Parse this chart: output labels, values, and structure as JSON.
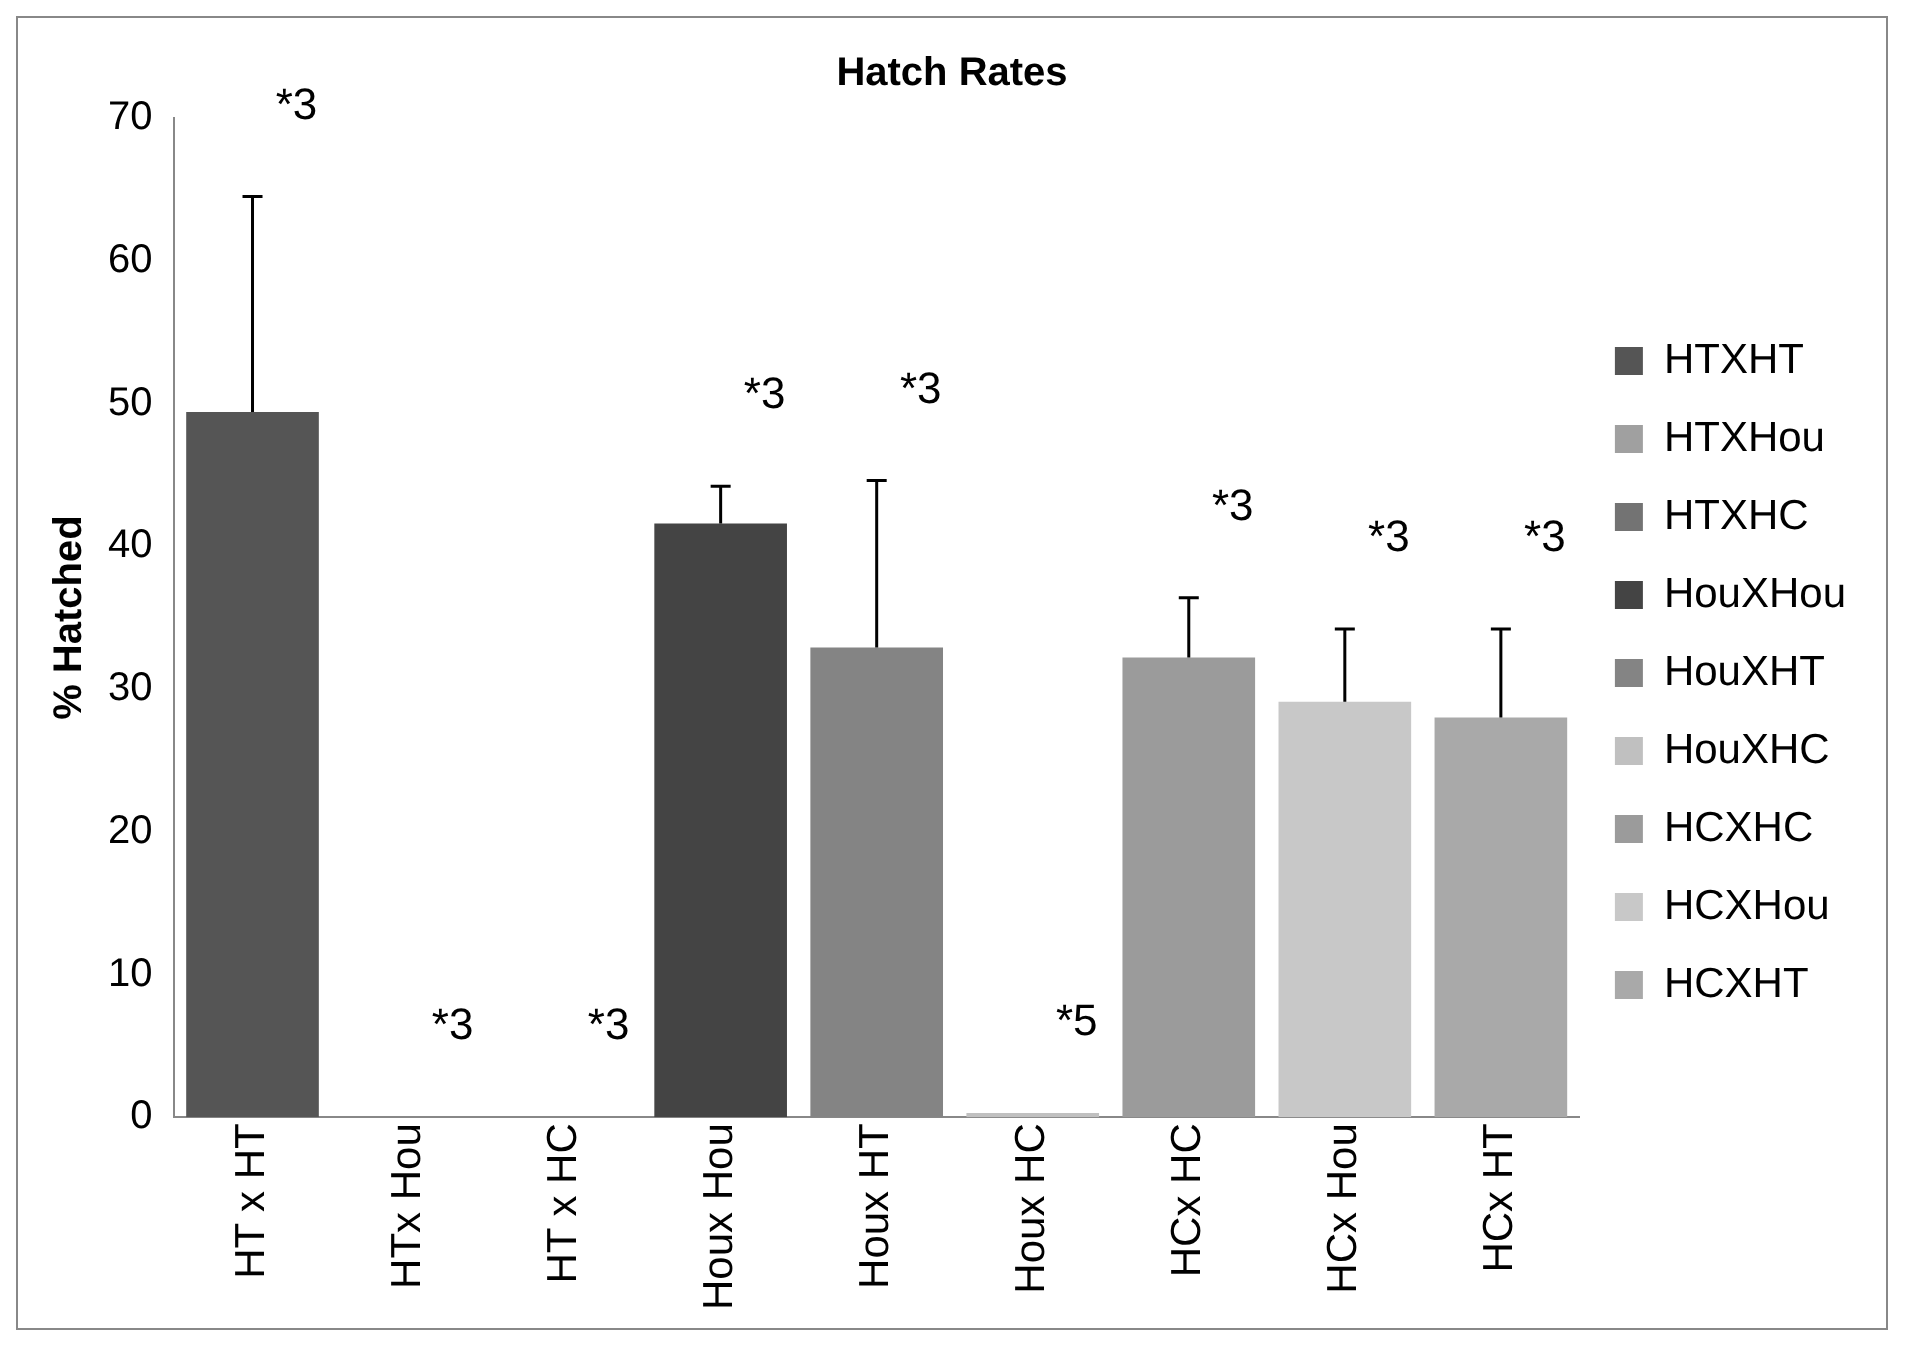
{
  "chart_data": {
    "type": "bar",
    "title": "Hatch Rates",
    "ylabel": "% Hatched",
    "stacked": true,
    "categories": [
      "HT x HT",
      "HTx Hou",
      "HT x HC",
      "Houx Hou",
      "Houx HT",
      "Houx HC",
      "HCx HC",
      "HCx Hou",
      "HCx HT"
    ],
    "series": [
      {
        "name": "HTXHT",
        "color": "#555555",
        "values": [
          49.4,
          null,
          null,
          null,
          null,
          null,
          null,
          null,
          null
        ],
        "errors": [
          15.1,
          null,
          null,
          null,
          null,
          null,
          null,
          null,
          null
        ]
      },
      {
        "name": "HTXHou",
        "color": "#a0a0a0",
        "values": [
          null,
          0,
          null,
          null,
          null,
          null,
          null,
          null,
          null
        ]
      },
      {
        "name": "HTXHC",
        "color": "#737373",
        "values": [
          null,
          null,
          0,
          null,
          null,
          null,
          null,
          null,
          null
        ]
      },
      {
        "name": "HouXHou",
        "color": "#444444",
        "values": [
          null,
          null,
          null,
          41.6,
          null,
          null,
          null,
          null,
          null
        ],
        "errors": [
          null,
          null,
          null,
          2.6,
          null,
          null,
          null,
          null,
          null
        ]
      },
      {
        "name": "HouXHT",
        "color": "#848484",
        "values": [
          null,
          null,
          null,
          null,
          32.9,
          null,
          null,
          null,
          null
        ],
        "errors": [
          null,
          null,
          null,
          null,
          11.7,
          null,
          null,
          null,
          null
        ]
      },
      {
        "name": "HouXHC",
        "color": "#c0c0c0",
        "values": [
          null,
          null,
          null,
          null,
          null,
          0.3,
          null,
          null,
          null
        ]
      },
      {
        "name": "HCXHC",
        "color": "#9b9b9b",
        "values": [
          null,
          null,
          null,
          null,
          null,
          null,
          32.2,
          null,
          null
        ],
        "errors": [
          null,
          null,
          null,
          null,
          null,
          null,
          4.2,
          null,
          null
        ]
      },
      {
        "name": "HCXHou",
        "color": "#c8c8c8",
        "values": [
          null,
          null,
          null,
          null,
          null,
          null,
          null,
          29.1,
          null
        ],
        "errors": [
          null,
          null,
          null,
          null,
          null,
          null,
          null,
          5.1,
          null
        ]
      },
      {
        "name": "HCXHT",
        "color": "#a9a9a9",
        "values": [
          null,
          null,
          null,
          null,
          null,
          null,
          null,
          null,
          28.0
        ],
        "errors": [
          null,
          null,
          null,
          null,
          null,
          null,
          null,
          null,
          6.2
        ]
      }
    ],
    "ylim": [
      0,
      70
    ],
    "yticks": [
      0,
      10,
      20,
      30,
      40,
      50,
      60,
      70
    ],
    "grid": false,
    "legend": "right",
    "annotations": [
      "*3",
      "*3",
      "*3",
      "*3",
      "*3",
      "*5",
      "*3",
      "*3",
      "*3"
    ]
  }
}
